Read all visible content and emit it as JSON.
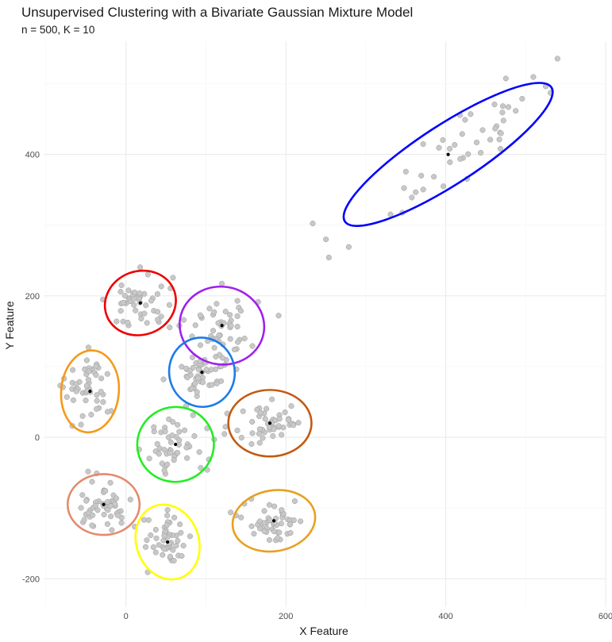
{
  "chart_data": {
    "type": "scatter",
    "title": "Unsupervised Clustering with a Bivariate Gaussian Mixture Model",
    "subtitle": "n = 500, K = 10",
    "xlabel": "X Feature",
    "ylabel": "Y Feature",
    "xlim": [
      -103,
      600
    ],
    "ylim": [
      -240,
      560
    ],
    "x_ticks": [
      0,
      200,
      400,
      600
    ],
    "y_ticks": [
      -200,
      0,
      200,
      400
    ],
    "grid": true,
    "legend": "none",
    "point_color": "#c8c8c8",
    "center_color": "#000000",
    "clusters": [
      {
        "color": "#0000ff",
        "center": [
          403,
          400
        ],
        "sx": 70,
        "sy": 70,
        "rho": 0.91,
        "ellipse": {
          "rx": 154,
          "ry": 42,
          "angle": 33
        }
      },
      {
        "color": "#ee0000",
        "center": [
          18,
          190
        ],
        "sx": 20,
        "sy": 20,
        "rho": 0.05,
        "ellipse": {
          "rx": 45,
          "ry": 45,
          "angle": 20
        }
      },
      {
        "color": "#a020f0",
        "center": [
          120,
          158
        ],
        "sx": 22,
        "sy": 23,
        "rho": -0.05,
        "ellipse": {
          "rx": 53,
          "ry": 55,
          "angle": -10
        }
      },
      {
        "color": "#1e7be8",
        "center": [
          95,
          92
        ],
        "sx": 17,
        "sy": 18,
        "rho": 0.05,
        "ellipse": {
          "rx": 41,
          "ry": 49,
          "angle": 10
        }
      },
      {
        "color": "#f59a1b",
        "center": [
          -45,
          65
        ],
        "sx": 15,
        "sy": 23,
        "rho": -0.1,
        "ellipse": {
          "rx": 36,
          "ry": 58,
          "angle": -5
        }
      },
      {
        "color": "#22ee22",
        "center": [
          62,
          -10
        ],
        "sx": 19,
        "sy": 21,
        "rho": 0.0,
        "ellipse": {
          "rx": 48,
          "ry": 53,
          "angle": 10
        }
      },
      {
        "color": "#c25a10",
        "center": [
          180,
          20
        ],
        "sx": 22,
        "sy": 18,
        "rho": 0.0,
        "ellipse": {
          "rx": 52,
          "ry": 47,
          "angle": 0
        }
      },
      {
        "color": "#e58a6e",
        "center": [
          -28,
          -95
        ],
        "sx": 18,
        "sy": 17,
        "rho": 0.05,
        "ellipse": {
          "rx": 45,
          "ry": 43,
          "angle": 0
        }
      },
      {
        "color": "#ffff00",
        "center": [
          52,
          -148
        ],
        "sx": 16,
        "sy": 21,
        "rho": 0.2,
        "ellipse": {
          "rx": 39,
          "ry": 54,
          "angle": 20
        }
      },
      {
        "color": "#e8a020",
        "center": [
          185,
          -118
        ],
        "sx": 20,
        "sy": 15,
        "rho": 0.1,
        "ellipse": {
          "rx": 52,
          "ry": 43,
          "angle": 10
        }
      }
    ]
  }
}
